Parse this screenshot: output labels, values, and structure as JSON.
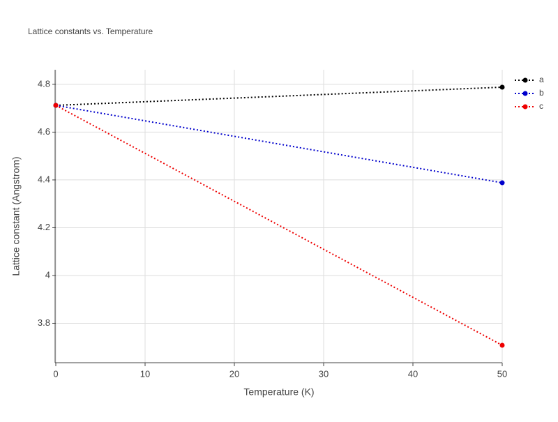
{
  "chart_data": {
    "type": "line",
    "title": "Lattice constants vs. Temperature",
    "x_label": "Temperature (K)",
    "y_label": "Lattice constant (Angstrom)",
    "x": [
      0,
      50
    ],
    "series": [
      {
        "name": "a",
        "color": "#000000",
        "values": [
          4.712,
          4.788
        ]
      },
      {
        "name": "b",
        "color": "#0000cc",
        "values": [
          4.712,
          4.388
        ]
      },
      {
        "name": "c",
        "color": "#ee0000",
        "values": [
          4.712,
          3.708
        ]
      }
    ],
    "xlim": [
      0,
      50
    ],
    "xticks": [
      0,
      10,
      20,
      30,
      40,
      50
    ],
    "ylim": [
      3.635,
      4.861
    ],
    "yticks": [
      3.8,
      4,
      4.2,
      4.4,
      4.6,
      4.8
    ],
    "grid": true,
    "legend": "top-right"
  }
}
